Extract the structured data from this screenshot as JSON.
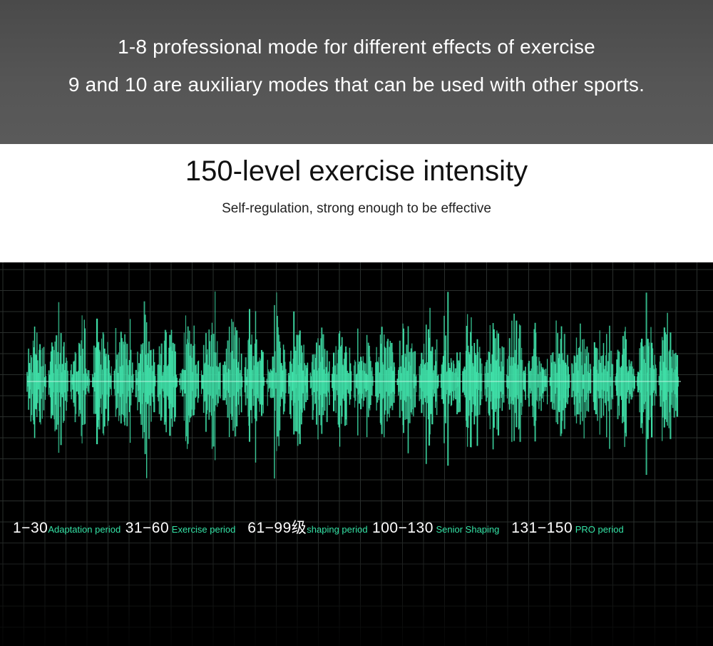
{
  "banner": {
    "line1": "1-8 professional mode for different effects of exercise",
    "line2": "9 and 10 are auxiliary modes that can be used with other sports."
  },
  "intensity": {
    "title": "150-level exercise intensity",
    "subtitle": "Self-regulation, strong enough to be effective"
  },
  "levels": [
    {
      "range": "1−30",
      "name": "Adaptation period"
    },
    {
      "range": "31−60",
      "name": " Exercise period"
    },
    {
      "range": "61−99级",
      "name": "shaping period"
    },
    {
      "range": "100−130",
      "name": " Senior Shaping"
    },
    {
      "range": "131−150",
      "name": " PRO period"
    }
  ],
  "colors": {
    "wave": "#3fe0a8",
    "grid": "#2a2f2d",
    "label_accent": "#35e3a6"
  }
}
